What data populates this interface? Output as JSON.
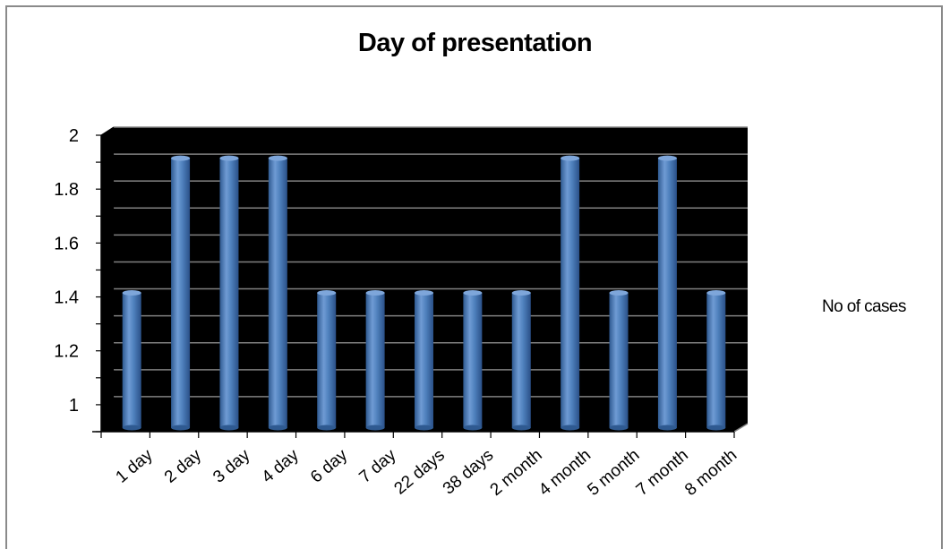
{
  "chart_data": {
    "type": "bar",
    "title": "Day of presentation",
    "xlabel": "",
    "ylabel": "",
    "categories": [
      "1 day",
      "2 day",
      "3 day",
      "4 day",
      "6 day",
      "7 day",
      "22 days",
      "38 days",
      "2 month",
      "4 month",
      "5 month",
      "7 month",
      "8 month"
    ],
    "series": [
      {
        "name": "No of cases",
        "values": [
          1.4,
          1.9,
          1.9,
          1.9,
          1.4,
          1.4,
          1.4,
          1.4,
          1.4,
          1.9,
          1.4,
          1.9,
          1.4
        ]
      }
    ],
    "ylim": [
      0.9,
      2
    ],
    "yticks": [
      "1",
      "1.2",
      "1.4",
      "1.6",
      "1.8",
      "2"
    ],
    "grid": true,
    "legend_position": "right",
    "colors": {
      "bar": "#4F81BD",
      "bar_light": "#7ea6da",
      "bar_dark": "#2f5a91",
      "plot_background": "#000000",
      "gridline": "#808080"
    }
  }
}
